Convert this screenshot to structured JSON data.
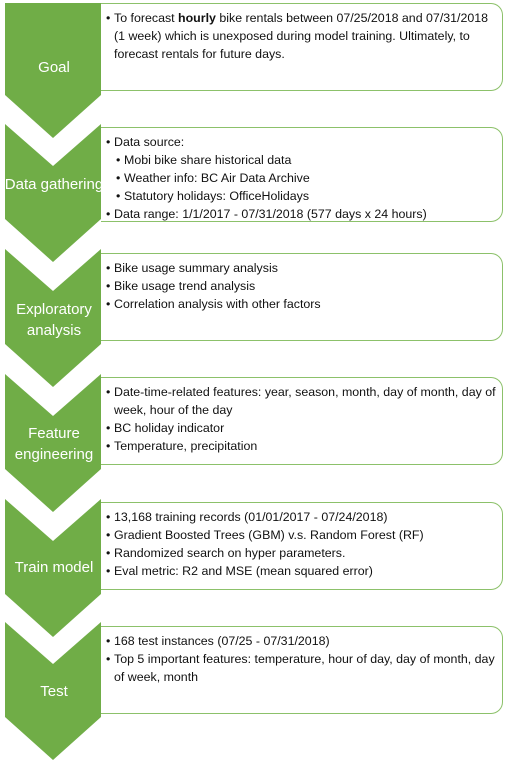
{
  "colors": {
    "chevron": "#70ad47",
    "border": "#8cc16a",
    "text": "#111111"
  },
  "stages": [
    {
      "label": "Goal",
      "bullets": [
        {
          "level": 0,
          "segments": [
            {
              "text": "To forecast "
            },
            {
              "text": "hourly",
              "bold": true
            },
            {
              "text": " bike rentals between 07/25/2018 and 07/31/2018 (1 week) which is unexposed during model training. Ultimately, to forecast rentals for future days."
            }
          ]
        }
      ]
    },
    {
      "label": "Data gathering",
      "bullets": [
        {
          "level": 0,
          "segments": [
            {
              "text": "Data source:"
            }
          ]
        },
        {
          "level": 1,
          "segments": [
            {
              "text": "Mobi bike share historical data"
            }
          ]
        },
        {
          "level": 1,
          "segments": [
            {
              "text": "Weather info: BC Air Data Archive"
            }
          ]
        },
        {
          "level": 1,
          "segments": [
            {
              "text": "Statutory holidays: OfficeHolidays"
            }
          ]
        },
        {
          "level": 0,
          "segments": [
            {
              "text": "Data range: 1/1/2017 - 07/31/2018 (577 days x 24 hours)"
            }
          ]
        }
      ]
    },
    {
      "label": "Exploratory analysis",
      "bullets": [
        {
          "level": 0,
          "segments": [
            {
              "text": "Bike usage summary analysis"
            }
          ]
        },
        {
          "level": 0,
          "segments": [
            {
              "text": "Bike usage trend analysis"
            }
          ]
        },
        {
          "level": 0,
          "segments": [
            {
              "text": "Correlation analysis with other factors"
            }
          ]
        }
      ]
    },
    {
      "label": "Feature engineering",
      "bullets": [
        {
          "level": 0,
          "segments": [
            {
              "text": "Date-time-related features: year, season, month, day of month, day of week, hour of the day"
            }
          ]
        },
        {
          "level": 0,
          "segments": [
            {
              "text": "BC holiday indicator"
            }
          ]
        },
        {
          "level": 0,
          "segments": [
            {
              "text": "Temperature, precipitation"
            }
          ]
        }
      ]
    },
    {
      "label": "Train model",
      "bullets": [
        {
          "level": 0,
          "segments": [
            {
              "text": "13,168 training records (01/01/2017 - 07/24/2018)"
            }
          ]
        },
        {
          "level": 0,
          "segments": [
            {
              "text": "Gradient Boosted Trees (GBM) v.s. Random Forest (RF)"
            }
          ]
        },
        {
          "level": 0,
          "segments": [
            {
              "text": "Randomized search on hyper parameters."
            }
          ]
        },
        {
          "level": 0,
          "segments": [
            {
              "text": "Eval metric: R2 and MSE (mean squared error)"
            }
          ]
        }
      ]
    },
    {
      "label": "Test",
      "bullets": [
        {
          "level": 0,
          "segments": [
            {
              "text": "168 test instances (07/25 - 07/31/2018)"
            }
          ]
        },
        {
          "level": 0,
          "segments": [
            {
              "text": "Top 5 important features: temperature, hour of day, day of month, day of week, month"
            }
          ]
        }
      ]
    }
  ]
}
